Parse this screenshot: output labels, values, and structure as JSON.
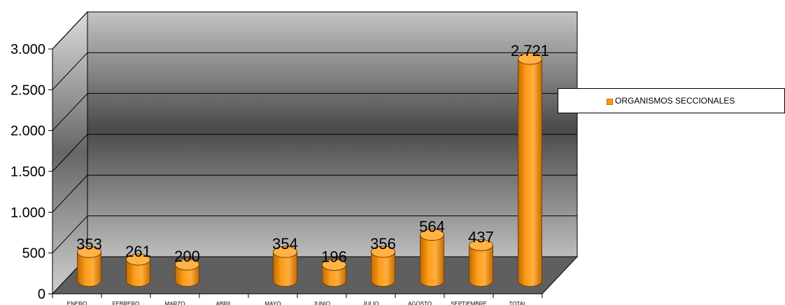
{
  "chart_data": {
    "type": "bar",
    "title": "",
    "xlabel": "",
    "ylabel": "",
    "categories": [
      "ENERO",
      "FEBRERO",
      "MARZO",
      "ABRIL",
      "MAYO",
      "JUNIO",
      "JULIO",
      "AGOSTO",
      "SEPTIEMBRE",
      "TOTAL"
    ],
    "series": [
      {
        "name": "ORGANISMOS SECCIONALES",
        "values": [
          353,
          261,
          200,
          null,
          354,
          196,
          356,
          564,
          437,
          2721
        ],
        "data_labels": [
          "353",
          "261",
          "200",
          "",
          "354",
          "196",
          "356",
          "564",
          "437",
          "2.721"
        ],
        "color": "#ff9900"
      }
    ],
    "ylim": [
      0,
      3000
    ],
    "yticks": [
      0,
      500,
      1000,
      1500,
      2000,
      2500,
      3000
    ],
    "ytick_labels": [
      "0",
      "500",
      "1.000",
      "1.500",
      "2.000",
      "2.500",
      "3.000"
    ],
    "grid": true,
    "style": "3d-cylinder",
    "legend_position": "right",
    "colors": {
      "bar": "#ff9900",
      "bar_dark": "#b86200",
      "bar_top": "#ffb347",
      "floor": "#5f5f5f",
      "back_wall_dark": "#4a4a4a",
      "back_wall_light": "#bcbcbc",
      "side_wall_dark": "#6a6a6a",
      "side_wall_light": "#d4d4d4"
    }
  }
}
